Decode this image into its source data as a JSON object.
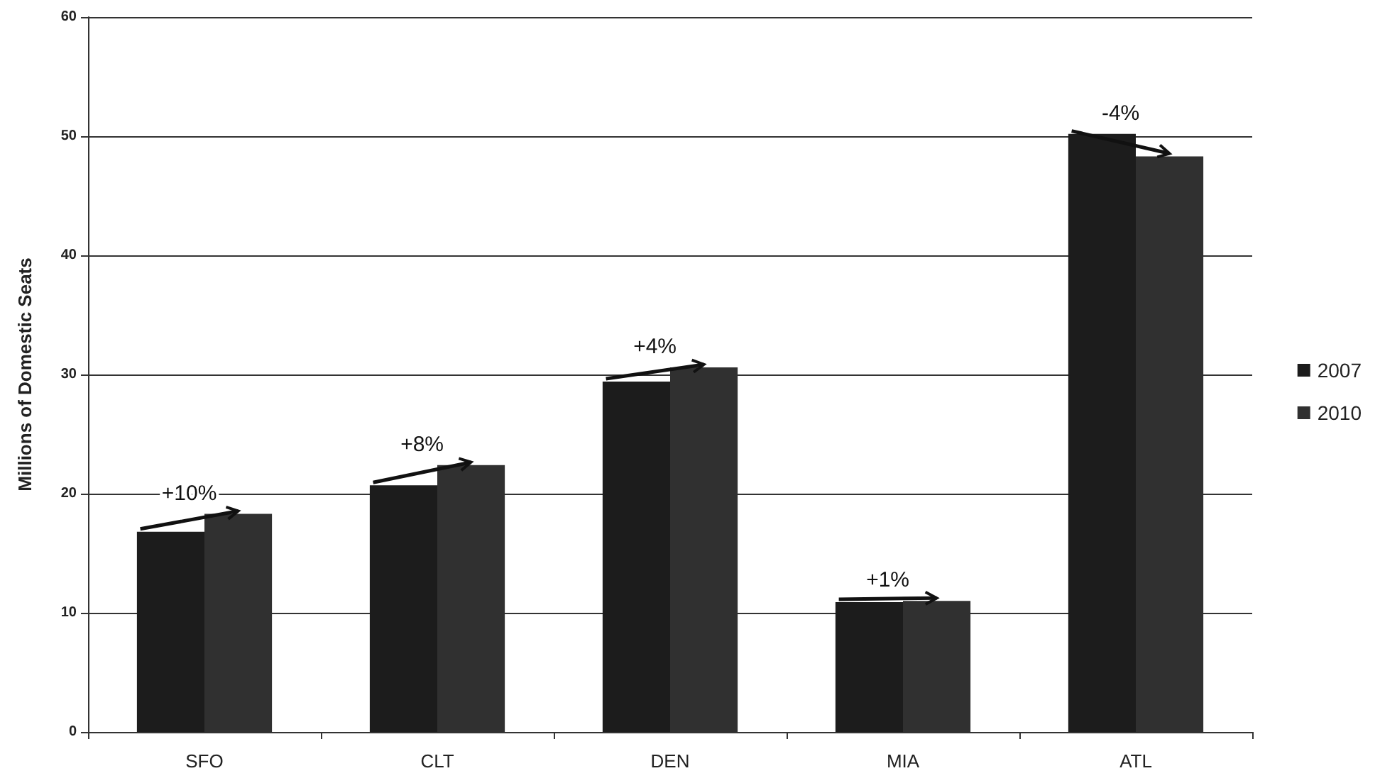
{
  "chart_data": {
    "type": "bar",
    "ylabel": "Millions of Domestic Seats",
    "categories": [
      "SFO",
      "CLT",
      "DEN",
      "MIA",
      "ATL"
    ],
    "series": [
      {
        "name": "2007",
        "color": "#1c1c1c",
        "values": [
          16.8,
          20.7,
          29.4,
          10.9,
          50.2
        ]
      },
      {
        "name": "2010",
        "color": "#303030",
        "values": [
          18.3,
          22.4,
          30.6,
          11.0,
          48.3
        ]
      }
    ],
    "ylim": [
      0,
      60
    ],
    "yticks": [
      0,
      10,
      20,
      30,
      40,
      50,
      60
    ],
    "grid": "y",
    "legend": "right",
    "annotations": [
      {
        "text": "+10%",
        "x": "SFO",
        "y": 16.8
      },
      {
        "text": "+8%",
        "x": "CLT",
        "y": 20.7
      },
      {
        "text": "+4%",
        "x": "DEN",
        "y": 29.4
      },
      {
        "text": "+1%",
        "x": "MIA",
        "y": 10.9
      },
      {
        "text": "-4%",
        "x": "ATL",
        "y": 50.2
      }
    ]
  }
}
